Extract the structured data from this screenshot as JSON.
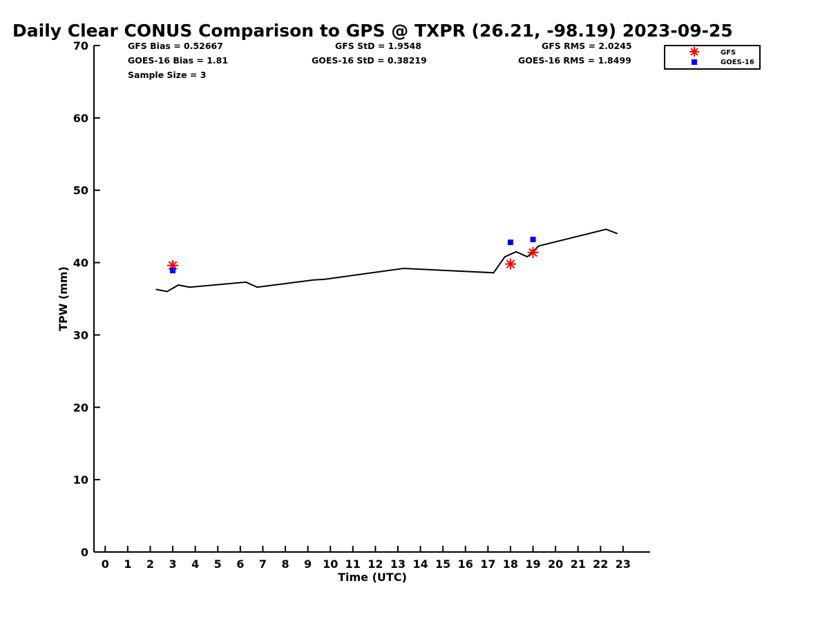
{
  "chart_data": {
    "type": "line",
    "title": "Daily Clear CONUS Comparison to GPS @ TXPR (26.21, -98.19) 2023-09-25",
    "xlabel": "Time (UTC)",
    "ylabel": "TPW (mm)",
    "xlim": [
      -0.5,
      24.2
    ],
    "ylim": [
      0,
      70
    ],
    "x_ticks": [
      "0",
      "1",
      "2",
      "3",
      "4",
      "5",
      "6",
      "7",
      "8",
      "9",
      "10",
      "11",
      "12",
      "13",
      "14",
      "15",
      "16",
      "17",
      "18",
      "19",
      "20",
      "21",
      "22",
      "23"
    ],
    "y_ticks": [
      "0",
      "10",
      "20",
      "30",
      "40",
      "50",
      "60",
      "70"
    ],
    "grid": false,
    "legend_position": "top-right",
    "stats": {
      "gfs_bias": "GFS Bias = 0.52667",
      "goes_bias": "GOES-16 Bias = 1.81",
      "sample_size": "Sample Size = 3",
      "gfs_std": "GFS StD = 1.9548",
      "goes_std": "GOES-16 StD = 0.38219",
      "gfs_rms": "GFS RMS = 2.0245",
      "goes_rms": "GOES-16 RMS = 1.8499"
    },
    "series": [
      {
        "kind": "line",
        "color": "#000000",
        "x": [
          2.25,
          2.75,
          3.25,
          3.75,
          6.25,
          6.75,
          9.25,
          9.75,
          13.25,
          17.25,
          17.75,
          18.25,
          18.75,
          19.25,
          22.25,
          22.75
        ],
        "y": [
          36.3,
          36.0,
          36.9,
          36.6,
          37.3,
          36.6,
          37.6,
          37.7,
          39.2,
          38.6,
          40.8,
          41.5,
          40.8,
          42.3,
          44.6,
          44.0
        ]
      },
      {
        "kind": "marker",
        "name": "GFS",
        "marker": "asterisk",
        "color": "#ff0000",
        "x": [
          3,
          18,
          19
        ],
        "y": [
          39.6,
          39.8,
          41.4
        ]
      },
      {
        "kind": "marker",
        "name": "GOES-16",
        "marker": "square",
        "color": "#0000ff",
        "x": [
          3,
          18,
          19
        ],
        "y": [
          38.9,
          42.8,
          43.2
        ]
      }
    ]
  }
}
